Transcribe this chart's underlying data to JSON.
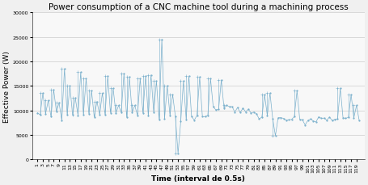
{
  "title": "Power consumption of a CNC machine tool during a machining process",
  "xlabel": "Time (interval de 0.5s)",
  "ylabel": "Effective Power (W)",
  "ylim": [
    0,
    30000
  ],
  "yticks": [
    0,
    5000,
    10000,
    15000,
    20000,
    25000,
    30000
  ],
  "ytick_labels": [
    "0",
    "5000",
    "10000",
    "15000",
    "20000",
    "25000",
    "30000"
  ],
  "n_points": 120,
  "line_color": "#7ab0cc",
  "background_color": "#f0f0f0",
  "plot_bg_color": "#f8f8f8",
  "title_fontsize": 7.5,
  "axis_label_fontsize": 6.5,
  "tick_fontsize": 4.5
}
